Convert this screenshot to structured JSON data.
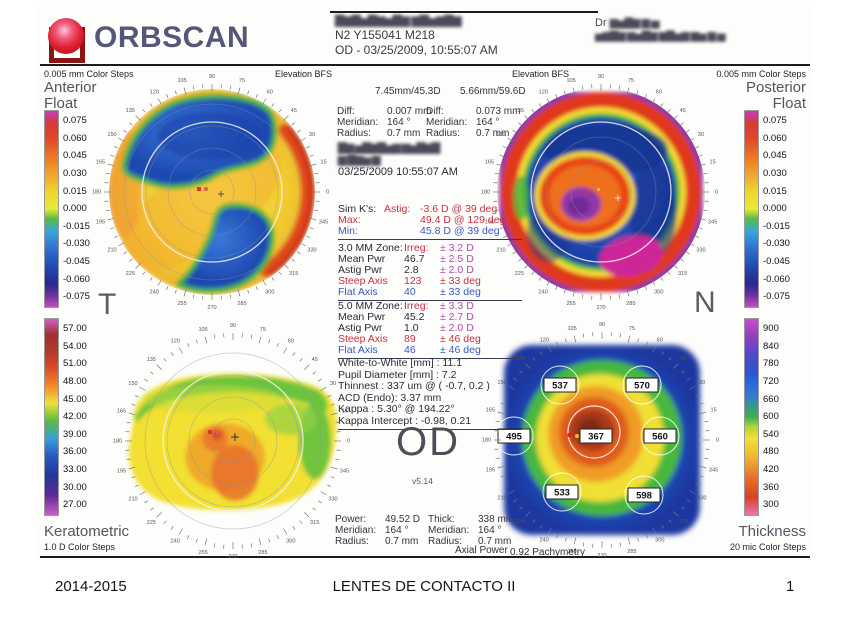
{
  "polar": {
    "tick_step_deg": 5,
    "label_step_deg": 15,
    "labels": [
      0,
      15,
      30,
      45,
      60,
      75,
      90,
      105,
      120,
      135,
      150,
      165,
      180,
      195,
      210,
      225,
      240,
      255,
      270,
      285,
      300,
      315,
      330,
      345
    ]
  },
  "header": {
    "logo_text": "ORBSCAN",
    "patient_name_redacted": "▇▆▇▅▇▆▅▇▆ ▆▇▅▆▇▆",
    "patient_id": "N2 Y155041 M218",
    "exam_line": "OD - 03/25/2009, 10:55:07 AM",
    "doctor_prefix": "Dr ",
    "doctor_line1_redacted": "▆▅▇▆ ▆ ▅",
    "doctor_line2_redacted": "▅▆▇▆ ▆▅▇▆ ▆▇▅▆ ▆▅ ▆ ▅"
  },
  "anterior": {
    "color_steps": "0.005 mm Color Steps",
    "title_line1": "Anterior",
    "title_line2": "Float",
    "elevation_label": "Elevation BFS",
    "bfs_value": "7.45mm/45.3D",
    "scale_labels": [
      "0.075",
      "0.060",
      "0.045",
      "0.030",
      "0.015",
      "0.000",
      "-0.015",
      "-0.030",
      "-0.045",
      "-0.060",
      "-0.075"
    ],
    "diff_label": "Diff:",
    "diff_value": "0.007 mm",
    "meridian_label": "Meridian:",
    "meridian_value": "164 °",
    "radius_label": "Radius:",
    "radius_value": "0.7 mm"
  },
  "posterior": {
    "color_steps": "0.005 mm Color Steps",
    "title_line1": "Posterior",
    "title_line2": "Float",
    "elevation_label": "Elevation BFS",
    "bfs_value": "5.66mm/59.6D",
    "center_mark": "3+",
    "scale_labels": [
      "0.075",
      "0.060",
      "0.045",
      "0.030",
      "0.015",
      "0.000",
      "-0.015",
      "-0.030",
      "-0.045",
      "-0.060",
      "-0.075"
    ],
    "diff_label": "Diff:",
    "diff_value": "0.073 mm",
    "meridian_label": "Meridian:",
    "meridian_value": "164 °",
    "radius_label": "Radius:",
    "radius_value": "0.7 mm"
  },
  "orientation": {
    "temporal": "T",
    "nasal": "N"
  },
  "exam_info": {
    "patient_redacted_1": "▇▆ ▅▇▆▇▅▆ ▆▅▇▆▇",
    "patient_redacted_2": "▆ ▇▆▅ ▆",
    "datetime": "03/25/2009 10:55:07 AM"
  },
  "simk": {
    "rows": [
      {
        "label": "Sim K's:",
        "lc": "black",
        "sub": "Astig:",
        "value": "-3.6 D  @ 39 deg",
        "c": "red"
      },
      {
        "label": "Max:",
        "lc": "red",
        "sub": "",
        "value": "49.4 D  @ 129 deg",
        "c": "red"
      },
      {
        "label": "Min:",
        "lc": "blue",
        "sub": "",
        "value": "45.8 D  @ 39 deg",
        "c": "blue"
      }
    ]
  },
  "zone3": {
    "title": "3.0 MM Zone:",
    "irreg_label": "Irreg:",
    "irreg_value": "± 3.2 D",
    "rows": [
      {
        "n": "Mean Pwr",
        "v": "46.7",
        "t": "± 2.5 D",
        "c": "black",
        "tc": "mag"
      },
      {
        "n": "Astig Pwr",
        "v": "2.8",
        "t": "± 2.0 D",
        "c": "black",
        "tc": "mag"
      },
      {
        "n": "Steep Axis",
        "v": "123",
        "t": "± 33 deg",
        "c": "red",
        "tc": "red"
      },
      {
        "n": "Flat Axis",
        "v": "40",
        "t": "± 33 deg",
        "c": "blue",
        "tc": "blue"
      }
    ]
  },
  "zone5": {
    "title": "5.0 MM Zone:",
    "irreg_label": "Irreg:",
    "irreg_value": "± 3.3 D",
    "rows": [
      {
        "n": "Mean Pwr",
        "v": "45.2",
        "t": "± 2.7 D",
        "c": "black",
        "tc": "mag"
      },
      {
        "n": "Astig Pwr",
        "v": "1.0",
        "t": "± 2.0 D",
        "c": "black",
        "tc": "mag"
      },
      {
        "n": "Steep Axis",
        "v": "89",
        "t": "± 46 deg",
        "c": "red",
        "tc": "red"
      },
      {
        "n": "Flat Axis",
        "v": "46",
        "t": "± 46 deg",
        "c": "blue",
        "tc": "blue"
      }
    ]
  },
  "globals": {
    "lines": [
      "White-to-White [mm] : 11.1",
      "Pupil Diameter [mm] : 7.2",
      "Thinnest : 337 um @ ( -0.7, 0.2 )",
      "ACD (Endo): 3.37 mm",
      "Kappa : 5.30° @ 194.22°",
      "Kappa Intercept : -0.98, 0.21"
    ]
  },
  "eye_label": "OD",
  "version": "v5.14",
  "power_block": {
    "rows": [
      [
        "Power:",
        "49.52 D"
      ],
      [
        "Meridian:",
        "164 °"
      ],
      [
        "Radius:",
        "0.7 mm"
      ]
    ]
  },
  "thick_block": {
    "rows": [
      [
        "Thick:",
        "338 mic"
      ],
      [
        "Meridian:",
        "164 °"
      ],
      [
        "Radius:",
        "0.7 mm"
      ]
    ]
  },
  "keratometric": {
    "title": "Keratometric",
    "color_steps": "1.0 D Color Steps",
    "map_label": "Axial Power",
    "scale_labels": [
      "57.00",
      "54.00",
      "51.00",
      "48.00",
      "45.00",
      "42.00",
      "39.00",
      "36.00",
      "33.00",
      "30.00",
      "27.00"
    ]
  },
  "thickness": {
    "title": "Thickness",
    "color_steps": "20 mic Color Steps",
    "map_label": "0.92 Pachymetry",
    "scale_labels": [
      "900",
      "840",
      "780",
      "720",
      "660",
      "600",
      "540",
      "480",
      "420",
      "360",
      "300"
    ],
    "point_values": [
      "537",
      "570",
      "495",
      "367",
      "560",
      "533",
      "598"
    ]
  },
  "footer": {
    "left": "2014-2015",
    "center": "LENTES DE CONTACTO II",
    "page": "1"
  }
}
